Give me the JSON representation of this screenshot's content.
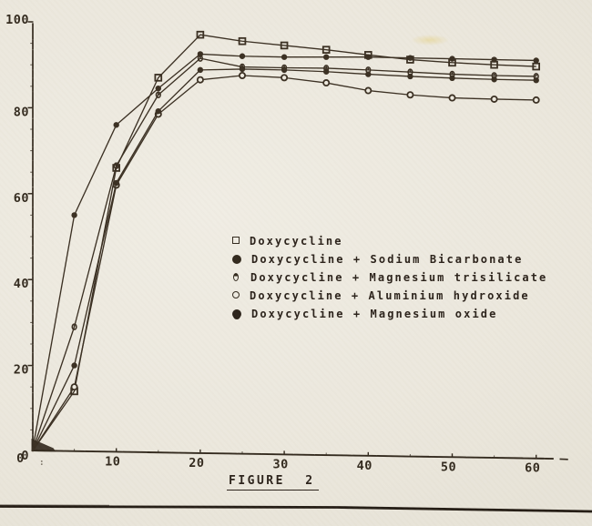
{
  "figure": {
    "caption": "FIGURE 2"
  },
  "colors": {
    "ink": "#32291d",
    "line": "#3a2f22",
    "paper": "#eeeadf",
    "rule": "#241c14"
  },
  "legend": {
    "items": [
      {
        "marker": "open-square",
        "label": "Doxycycline"
      },
      {
        "marker": "filled-circle",
        "label": "Doxycycline + Sodium Bicarbonate"
      },
      {
        "marker": "half-open-circle",
        "label": "Doxycycline + Magnesium trisilicate"
      },
      {
        "marker": "open-circle",
        "label": "Doxycycline + Aluminium hydroxide"
      },
      {
        "marker": "filled-dot",
        "label": "Doxycycline + Magnesium oxide"
      }
    ]
  },
  "chart_data": {
    "type": "line",
    "title": "FIGURE 2",
    "xlabel": "",
    "ylabel": "",
    "xlim": [
      0,
      63
    ],
    "ylim": [
      0,
      100
    ],
    "grid": false,
    "legend_position": "center-right",
    "xticks": [
      0,
      10,
      20,
      30,
      40,
      50,
      60
    ],
    "xticklabels": [
      "0",
      "10",
      "20",
      "30",
      "40",
      "50",
      "60"
    ],
    "xminor_step": 5,
    "yticks": [
      0,
      20,
      40,
      60,
      80,
      100
    ],
    "yticklabels": [
      "0",
      "20",
      "40",
      "60",
      "80",
      "100"
    ],
    "yminor_step": 5,
    "origin_artifact": ":",
    "x": [
      0,
      5,
      10,
      15,
      20,
      25,
      30,
      35,
      40,
      45,
      50,
      55,
      60
    ],
    "series": [
      {
        "name": "Doxycycline",
        "marker": "open-square",
        "values": [
          0,
          14,
          66,
          87,
          97,
          95.5,
          94.5,
          93.5,
          92.3,
          91.2,
          90.5,
          90,
          89.6
        ]
      },
      {
        "name": "Doxycycline + Sodium Bicarbonate",
        "marker": "filled-circle",
        "values": [
          0,
          55,
          76,
          84.5,
          92.5,
          92,
          91.8,
          91.8,
          91.8,
          91.6,
          91.4,
          91.2,
          91
        ]
      },
      {
        "name": "Doxycycline + Magnesium trisilicate",
        "marker": "half-open-circle",
        "values": [
          0,
          29,
          66.5,
          83,
          91.5,
          89.5,
          89.3,
          89.2,
          88.8,
          88.3,
          87.8,
          87.5,
          87.3
        ]
      },
      {
        "name": "Doxycycline + Aluminium hydroxide",
        "marker": "open-circle",
        "values": [
          0,
          15,
          62,
          78.5,
          86.5,
          87.5,
          87,
          85.8,
          84,
          83,
          82.3,
          82,
          81.8
        ]
      },
      {
        "name": "Doxycycline + Magnesium oxide",
        "marker": "filled-dot",
        "values": [
          0,
          20,
          62.5,
          79.2,
          88.8,
          89,
          88.8,
          88.4,
          87.8,
          87.3,
          86.9,
          86.6,
          86.4
        ]
      }
    ]
  }
}
